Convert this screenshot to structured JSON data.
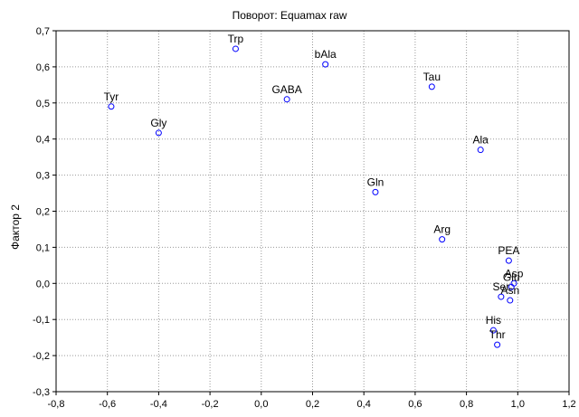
{
  "chart_data": {
    "type": "scatter",
    "title": "Поворот: Equamax raw",
    "xlabel": "",
    "ylabel": "Фактор 2",
    "xlim": [
      -0.8,
      1.2
    ],
    "ylim": [
      -0.3,
      0.7
    ],
    "grid": true,
    "x_ticks": [
      "-0,8",
      "-0,6",
      "-0,4",
      "-0,2",
      "0,0",
      "0,2",
      "0,4",
      "0,6",
      "0,8",
      "1,0",
      "1,2"
    ],
    "y_ticks": [
      "-0,3",
      "-0,2",
      "-0,1",
      "0,0",
      "0,1",
      "0,2",
      "0,3",
      "0,4",
      "0,5",
      "0,6",
      "0,7"
    ],
    "marker_color": "#0000ff",
    "points": [
      {
        "label": "Trp",
        "x": -0.1,
        "y": 0.65
      },
      {
        "label": "bAla",
        "x": 0.25,
        "y": 0.607
      },
      {
        "label": "Tau",
        "x": 0.665,
        "y": 0.545
      },
      {
        "label": "GABA",
        "x": 0.1,
        "y": 0.51
      },
      {
        "label": "Tyr",
        "x": -0.585,
        "y": 0.49
      },
      {
        "label": "Gly",
        "x": -0.4,
        "y": 0.417
      },
      {
        "label": "Ala",
        "x": 0.855,
        "y": 0.37
      },
      {
        "label": "Gln",
        "x": 0.445,
        "y": 0.253
      },
      {
        "label": "Arg",
        "x": 0.705,
        "y": 0.122
      },
      {
        "label": "PEA",
        "x": 0.965,
        "y": 0.063
      },
      {
        "label": "Asp",
        "x": 0.985,
        "y": 0.0
      },
      {
        "label": "Glu",
        "x": 0.975,
        "y": -0.01
      },
      {
        "label": "Ser",
        "x": 0.935,
        "y": -0.037
      },
      {
        "label": "Asn",
        "x": 0.97,
        "y": -0.047
      },
      {
        "label": "His",
        "x": 0.905,
        "y": -0.13
      },
      {
        "label": "Thr",
        "x": 0.92,
        "y": -0.17
      }
    ]
  }
}
